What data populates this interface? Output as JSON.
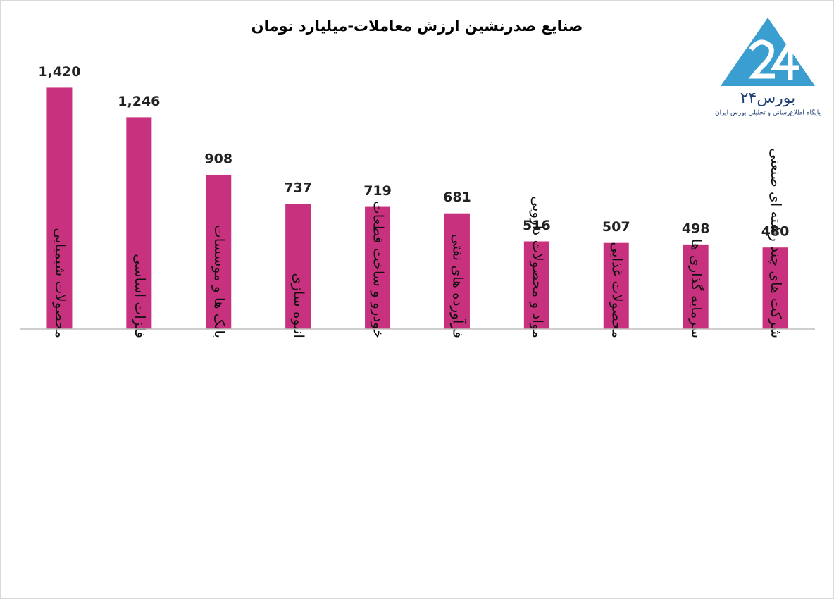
{
  "chart_data": {
    "type": "bar",
    "title": "صنایع صدرنشین ارزش معاملات-میلیارد تومان",
    "categories": [
      "محصولات شیمیایی",
      "فلزات اساسی",
      "بانک ها و موسسات",
      "انبوه سازی",
      "خودرو و ساخت قطعات",
      "فرآورده های نفتی",
      "مواد و محصولات دارویی",
      "محصولات غذایی",
      "سرمایه گذاری ها",
      "شرکت های چند رشته ای صنعتی"
    ],
    "values": [
      1420,
      1246,
      908,
      737,
      719,
      681,
      516,
      507,
      498,
      480
    ],
    "value_labels": [
      "1,420",
      "1,246",
      "908",
      "737",
      "719",
      "681",
      "516",
      "507",
      "498",
      "480"
    ],
    "color": "#c8317d",
    "ylim": [
      0,
      1600
    ],
    "grid": false
  },
  "logo": {
    "name": "بورس۲۴",
    "tagline": "پایگاه اطلاع‌رسانی و تحلیلی بورس ایران"
  }
}
